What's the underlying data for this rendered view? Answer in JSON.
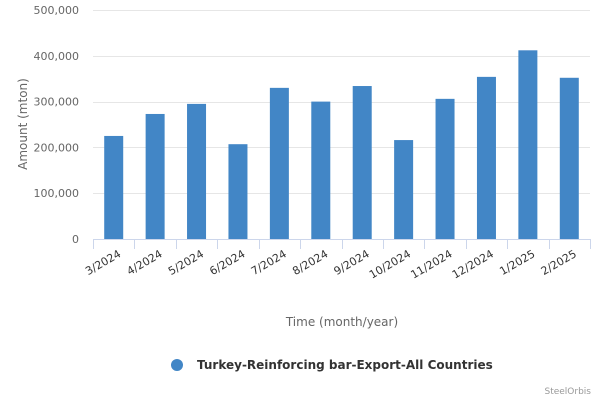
{
  "chart_data": {
    "type": "bar",
    "categories": [
      "3/2024",
      "4/2024",
      "5/2024",
      "6/2024",
      "7/2024",
      "8/2024",
      "9/2024",
      "10/2024",
      "11/2024",
      "12/2024",
      "1/2025",
      "2/2025"
    ],
    "series": [
      {
        "name": "Turkey-Reinforcing bar-Export-All Countries",
        "values": [
          225000,
          273000,
          295000,
          207000,
          330000,
          300000,
          334000,
          216000,
          306000,
          354000,
          412000,
          352000
        ],
        "color": "#4286c6"
      }
    ],
    "title": "",
    "xlabel": "Time (month/year)",
    "ylabel": "Amount (mton)",
    "ylim": [
      0,
      500000
    ],
    "yticks": [
      0,
      100000,
      200000,
      300000,
      400000,
      500000
    ],
    "ytick_labels": [
      "0",
      "100,000",
      "200,000",
      "300,000",
      "400,000",
      "500,000"
    ],
    "grid": true,
    "legend_position": "bottom-center"
  },
  "credit": "SteelOrbis"
}
